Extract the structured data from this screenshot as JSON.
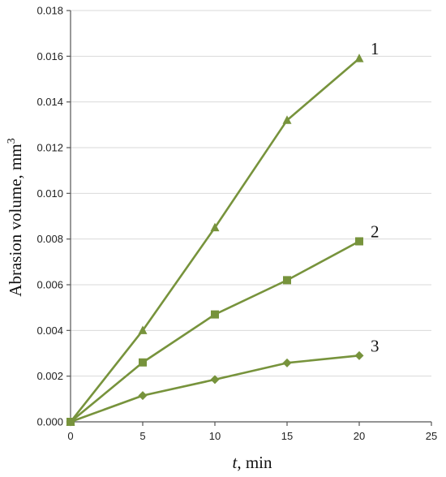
{
  "chart_data": {
    "type": "line",
    "title": "",
    "xlabel_italic": "t",
    "xlabel_rest": ", min",
    "ylabel": "Abrasion volume, mm",
    "ylabel_sup": "3",
    "xlim": [
      0,
      25
    ],
    "ylim": [
      0,
      0.018
    ],
    "xticks": [
      "0",
      "5",
      "10",
      "15",
      "20",
      "25"
    ],
    "yticks": [
      "0.000",
      "0.002",
      "0.004",
      "0.006",
      "0.008",
      "0.010",
      "0.012",
      "0.014",
      "0.016",
      "0.018"
    ],
    "grid": "horizontal",
    "color": "#77933C",
    "x": [
      0,
      5,
      10,
      15,
      20
    ],
    "series": [
      {
        "name": "1",
        "marker": "triangle",
        "values": [
          0.0,
          0.004,
          0.0085,
          0.0132,
          0.0159
        ]
      },
      {
        "name": "2",
        "marker": "square",
        "values": [
          0.0,
          0.0026,
          0.0047,
          0.0062,
          0.0079
        ]
      },
      {
        "name": "3",
        "marker": "diamond",
        "values": [
          0.0,
          0.00115,
          0.00185,
          0.00258,
          0.0029
        ]
      }
    ]
  }
}
